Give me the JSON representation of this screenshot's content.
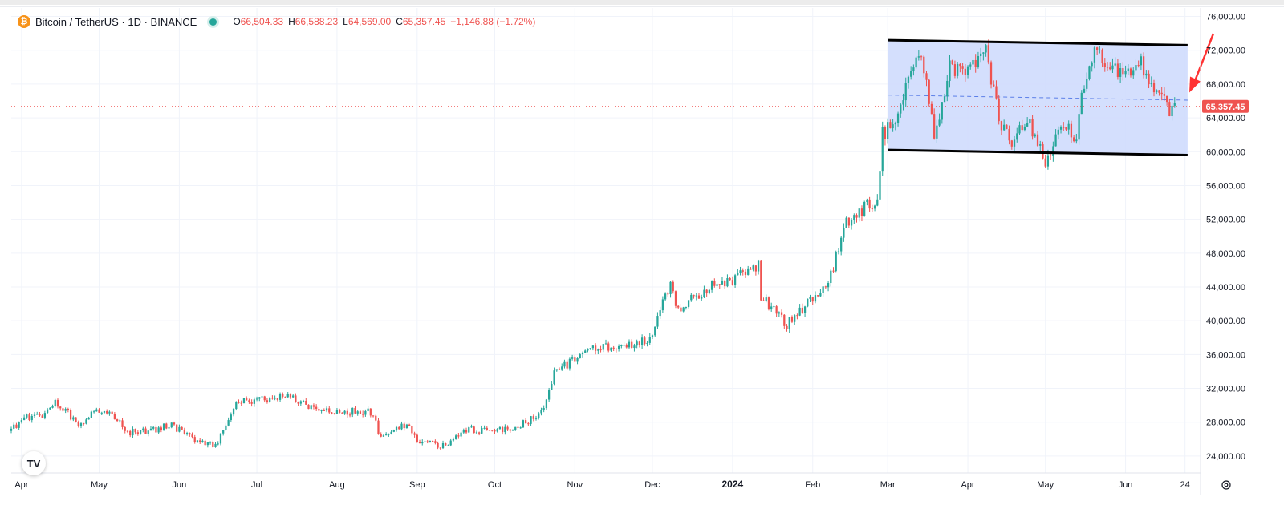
{
  "header": {
    "symbol": "Bitcoin / TetherUS · 1D · BINANCE",
    "ohlc": [
      {
        "k": "O",
        "v": "66,504.33"
      },
      {
        "k": "H",
        "v": "66,588.23"
      },
      {
        "k": "L",
        "v": "64,569.00"
      },
      {
        "k": "C",
        "v": "65,357.45"
      },
      {
        "k": "",
        "v": "−1,146.88 (−1.72%)"
      }
    ]
  },
  "colors": {
    "up": "#26a69a",
    "down": "#ef5350",
    "channel_fill": "#cfdcfd",
    "channel_line": "#000000",
    "arrow": "#ff3333",
    "price_label_bg": "#ef5350"
  },
  "icons": {
    "logo": "tradingview-logo-icon",
    "settings": "gear-icon",
    "status": "status-dot-icon",
    "coin": "bitcoin-icon"
  },
  "logo_text": "TV",
  "chart_data": {
    "type": "candlestick",
    "symbol": "BTCUSDT",
    "interval": "1D",
    "x_range": [
      "2023-03-28",
      "2024-06-30"
    ],
    "ylim": [
      22000,
      77000
    ],
    "y_ticks": [
      24000,
      28000,
      32000,
      36000,
      40000,
      44000,
      48000,
      52000,
      56000,
      60000,
      64000,
      68000,
      72000,
      76000
    ],
    "y_tick_labels": [
      "24,000.00",
      "28,000.00",
      "32,000.00",
      "36,000.00",
      "40,000.00",
      "44,000.00",
      "48,000.00",
      "52,000.00",
      "56,000.00",
      "60,000.00",
      "64,000.00",
      "68,000.00",
      "72,000.00",
      "76,000.00"
    ],
    "x_ticks": [
      {
        "date": "2023-04-01",
        "label": "Apr"
      },
      {
        "date": "2023-05-01",
        "label": "May"
      },
      {
        "date": "2023-06-01",
        "label": "Jun"
      },
      {
        "date": "2023-07-01",
        "label": "Jul"
      },
      {
        "date": "2023-08-01",
        "label": "Aug"
      },
      {
        "date": "2023-09-01",
        "label": "Sep"
      },
      {
        "date": "2023-10-01",
        "label": "Oct"
      },
      {
        "date": "2023-11-01",
        "label": "Nov"
      },
      {
        "date": "2023-12-01",
        "label": "Dec"
      },
      {
        "date": "2024-01-01",
        "label": "2024"
      },
      {
        "date": "2024-02-01",
        "label": "Feb"
      },
      {
        "date": "2024-03-01",
        "label": "Mar"
      },
      {
        "date": "2024-04-01",
        "label": "Apr"
      },
      {
        "date": "2024-05-01",
        "label": "May"
      },
      {
        "date": "2024-06-01",
        "label": "Jun"
      },
      {
        "date": "2024-06-24",
        "label": "24"
      }
    ],
    "grid": true,
    "last_price": 65357.45,
    "last_price_label": "65,357.45",
    "close_path": [
      [
        "2023-03-28",
        27200
      ],
      [
        "2023-04-03",
        28500
      ],
      [
        "2023-04-10",
        28800
      ],
      [
        "2023-04-14",
        30500
      ],
      [
        "2023-04-19",
        29000
      ],
      [
        "2023-04-24",
        27500
      ],
      [
        "2023-04-29",
        29200
      ],
      [
        "2023-05-05",
        29500
      ],
      [
        "2023-05-12",
        26800
      ],
      [
        "2023-05-20",
        26900
      ],
      [
        "2023-05-29",
        27700
      ],
      [
        "2023-06-05",
        26200
      ],
      [
        "2023-06-10",
        25800
      ],
      [
        "2023-06-15",
        25100
      ],
      [
        "2023-06-20",
        28300
      ],
      [
        "2023-06-23",
        30500
      ],
      [
        "2023-07-01",
        30500
      ],
      [
        "2023-07-13",
        31400
      ],
      [
        "2023-07-20",
        29900
      ],
      [
        "2023-08-01",
        29300
      ],
      [
        "2023-08-15",
        29200
      ],
      [
        "2023-08-17",
        26600
      ],
      [
        "2023-08-29",
        27700
      ],
      [
        "2023-09-01",
        25900
      ],
      [
        "2023-09-11",
        25200
      ],
      [
        "2023-09-20",
        27100
      ],
      [
        "2023-10-01",
        27000
      ],
      [
        "2023-10-10",
        27500
      ],
      [
        "2023-10-16",
        28500
      ],
      [
        "2023-10-20",
        30000
      ],
      [
        "2023-10-23",
        33000
      ],
      [
        "2023-10-24",
        34000
      ],
      [
        "2023-11-01",
        35400
      ],
      [
        "2023-11-09",
        36800
      ],
      [
        "2023-11-20",
        37000
      ],
      [
        "2023-11-30",
        37700
      ],
      [
        "2023-12-05",
        42000
      ],
      [
        "2023-12-08",
        44000
      ],
      [
        "2023-12-11",
        41300
      ],
      [
        "2023-12-22",
        43800
      ],
      [
        "2024-01-02",
        45000
      ],
      [
        "2024-01-11",
        46500
      ],
      [
        "2024-01-12",
        42800
      ],
      [
        "2024-01-22",
        39500
      ],
      [
        "2024-01-31",
        42500
      ],
      [
        "2024-02-08",
        45300
      ],
      [
        "2024-02-14",
        51800
      ],
      [
        "2024-02-26",
        54500
      ],
      [
        "2024-02-28",
        62000
      ],
      [
        "2024-03-05",
        63800
      ],
      [
        "2024-03-08",
        68300
      ],
      [
        "2024-03-14",
        71400
      ],
      [
        "2024-03-19",
        62000
      ],
      [
        "2024-03-25",
        70000
      ],
      [
        "2024-04-01",
        69600
      ],
      [
        "2024-04-08",
        71600
      ],
      [
        "2024-04-13",
        64000
      ],
      [
        "2024-04-18",
        61300
      ],
      [
        "2024-04-24",
        64300
      ],
      [
        "2024-05-01",
        58300
      ],
      [
        "2024-05-06",
        63200
      ],
      [
        "2024-05-13",
        62000
      ],
      [
        "2024-05-15",
        66200
      ],
      [
        "2024-05-20",
        71400
      ],
      [
        "2024-06-03",
        68800
      ],
      [
        "2024-06-06",
        71000
      ],
      [
        "2024-06-11",
        67300
      ],
      [
        "2024-06-18",
        65000
      ],
      [
        "2024-06-20",
        65357
      ]
    ],
    "channel": {
      "upper": [
        [
          "2024-03-01",
          73200
        ],
        [
          "2024-06-25",
          72600
        ]
      ],
      "lower": [
        [
          "2024-03-01",
          60200
        ],
        [
          "2024-06-25",
          59600
        ]
      ]
    }
  }
}
